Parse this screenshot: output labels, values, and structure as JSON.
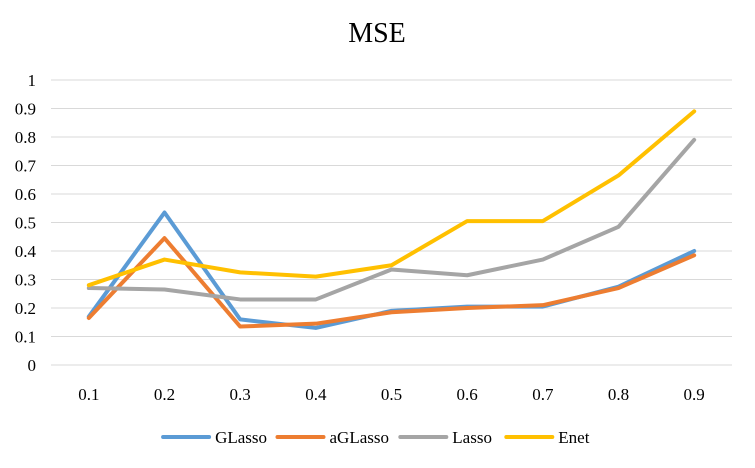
{
  "chart_data": {
    "type": "line",
    "title": "MSE",
    "xlabel": "",
    "ylabel": "",
    "categories": [
      "0.1",
      "0.2",
      "0.3",
      "0.4",
      "0.5",
      "0.6",
      "0.7",
      "0.8",
      "0.9"
    ],
    "ylim": [
      0,
      1
    ],
    "yticks": [
      "0",
      "0.1",
      "0.2",
      "0.3",
      "0.4",
      "0.5",
      "0.6",
      "0.7",
      "0.8",
      "0.9",
      "1"
    ],
    "grid": true,
    "legend_position": "bottom",
    "series": [
      {
        "name": "GLasso",
        "color": "#5b9bd5",
        "values": [
          0.17,
          0.535,
          0.16,
          0.13,
          0.19,
          0.205,
          0.205,
          0.275,
          0.4
        ]
      },
      {
        "name": "aGLasso",
        "color": "#ed7d31",
        "values": [
          0.165,
          0.445,
          0.135,
          0.145,
          0.185,
          0.2,
          0.21,
          0.27,
          0.385
        ]
      },
      {
        "name": "Lasso",
        "color": "#a5a5a5",
        "values": [
          0.27,
          0.265,
          0.23,
          0.23,
          0.335,
          0.315,
          0.37,
          0.485,
          0.79
        ]
      },
      {
        "name": "Enet",
        "color": "#ffc000",
        "values": [
          0.28,
          0.37,
          0.325,
          0.31,
          0.35,
          0.505,
          0.505,
          0.665,
          0.89
        ]
      }
    ]
  }
}
